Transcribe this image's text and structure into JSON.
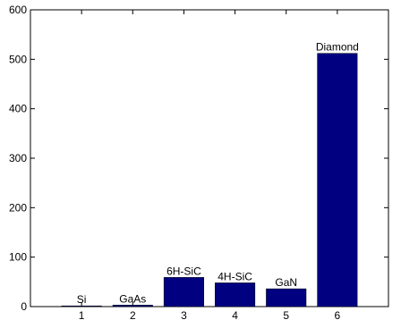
{
  "chart_data": {
    "type": "bar",
    "categories": [
      "1",
      "2",
      "3",
      "4",
      "5",
      "6"
    ],
    "values": [
      1.5,
      3,
      59,
      48,
      36,
      512
    ],
    "data_labels": [
      "Si",
      "GaAs",
      "6H-SiC",
      "4H-SiC",
      "GaN",
      "Diamond"
    ],
    "title": "",
    "xlabel": "",
    "ylabel": "",
    "ylim": [
      0,
      600
    ],
    "yticks": [
      "0",
      "100",
      "200",
      "300",
      "400",
      "500",
      "600"
    ],
    "grid": false,
    "bar_color": "#000080"
  }
}
